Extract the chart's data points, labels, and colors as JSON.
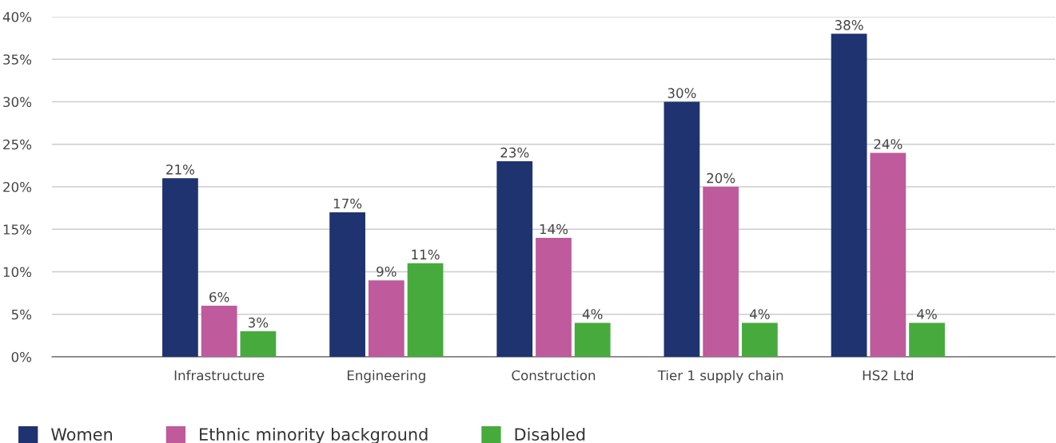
{
  "chart_data": {
    "type": "bar",
    "categories": [
      "Infrastructure",
      "Engineering",
      "Construction",
      "Tier 1 supply chain",
      "HS2 Ltd"
    ],
    "series": [
      {
        "name": "Women",
        "color": "#1f3370",
        "values": [
          21,
          17,
          23,
          30,
          38
        ],
        "value_labels": [
          "21%",
          "17%",
          "23%",
          "30%",
          "38%"
        ]
      },
      {
        "name": "Ethnic minority background",
        "color": "#bf5a9c",
        "values": [
          6,
          9,
          14,
          20,
          24
        ],
        "value_labels": [
          "6%",
          "9%",
          "14%",
          "20%",
          "24%"
        ]
      },
      {
        "name": "Disabled",
        "color": "#46ab3c",
        "values": [
          3,
          11,
          4,
          4,
          4
        ],
        "value_labels": [
          "3%",
          "11%",
          "4%",
          "4%",
          "4%"
        ]
      }
    ],
    "ylim": [
      0,
      40
    ],
    "yticks": [
      {
        "value": 0,
        "label": "0%"
      },
      {
        "value": 5,
        "label": "5%"
      },
      {
        "value": 10,
        "label": "10%"
      },
      {
        "value": 15,
        "label": "15%"
      },
      {
        "value": 20,
        "label": "20%"
      },
      {
        "value": 25,
        "label": "25%"
      },
      {
        "value": 30,
        "label": "30%"
      },
      {
        "value": 35,
        "label": "35%"
      },
      {
        "value": 40,
        "label": "40%"
      }
    ],
    "grid": "y",
    "legend": "bottom"
  }
}
